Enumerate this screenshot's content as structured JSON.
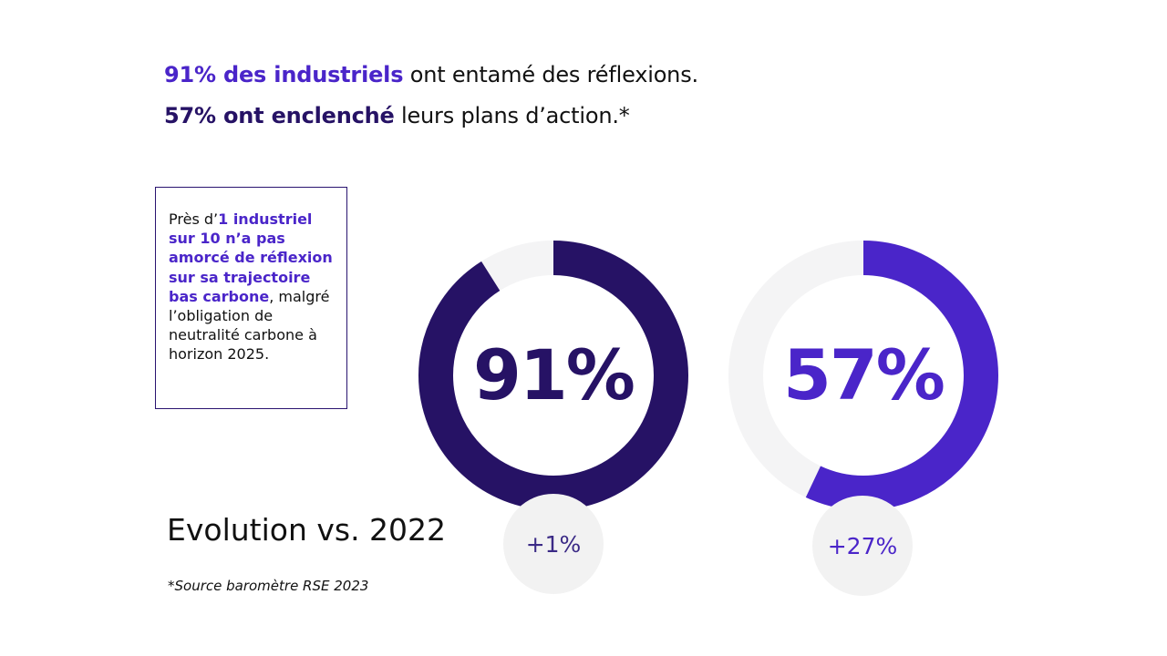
{
  "headline": {
    "line1_accent": "91% des industriels",
    "line1_rest": " ont entamé des réflexions.",
    "line2_accent": "57% ont enclenché",
    "line2_rest": " leurs plans d’action.*"
  },
  "callout": {
    "prefix": "Près d’",
    "strong": "1 industriel sur 10 n’a pas amorcé de réflexion sur sa trajectoire bas carbone",
    "suffix": ", malgré l’obligation de neutralité carbone à horizon 2025."
  },
  "evolution_label": "Evolution vs. 2022",
  "source_note": "*Source baromètre RSE 2023",
  "colors": {
    "dark_purple": "#261265",
    "accent_purple": "#4a25c9",
    "track_gray": "#f4f4f5",
    "bubble_gray": "#f2f2f2"
  },
  "chart_data": [
    {
      "type": "pie",
      "variant": "donut",
      "value_percent": 91,
      "center_label": "91%",
      "evolution_label": "+1%",
      "color": "#261265",
      "track_color": "#f4f4f5"
    },
    {
      "type": "pie",
      "variant": "donut",
      "value_percent": 57,
      "center_label": "57%",
      "evolution_label": "+27%",
      "color": "#4a25c9",
      "track_color": "#f4f4f5"
    }
  ]
}
